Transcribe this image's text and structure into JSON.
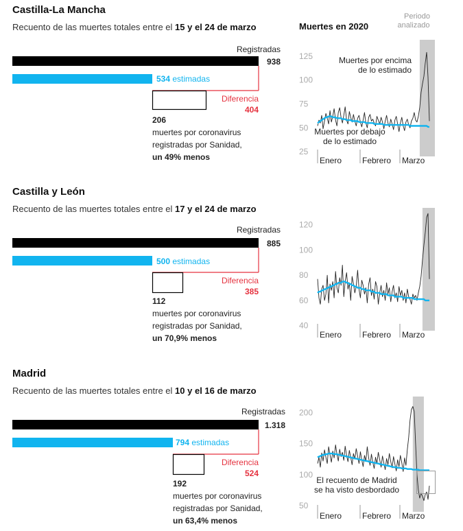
{
  "main_chart_title": "Muertes en 2020",
  "colors": {
    "black": "#000000",
    "blue": "#11b4ef",
    "red": "#e5323f",
    "gray": "#cccccc",
    "axis": "#999999"
  },
  "common_labels": {
    "registered": "Registradas",
    "estimated_suffix": "estimadas",
    "difference": "Diferencia",
    "covid_line1": "muertes por coronavirus",
    "covid_line2": "registradas por Sanidad,",
    "period_label_line1": "Periodo",
    "period_label_line2": "analizado",
    "subtitle_prefix": "Recuento de las muertes totales entre el",
    "months": [
      "Enero",
      "Febrero",
      "Marzo"
    ]
  },
  "regions": [
    {
      "name": "Castilla-La Mancha",
      "period": "15 y el 24 de marzo",
      "registered": "938",
      "estimated": "534",
      "difference": "404",
      "covid": "206",
      "percent_text": "un 49% menos",
      "annotation_above": [
        "Muertes por encima",
        "de lo estimado"
      ],
      "annotation_below": [
        "Muertes por debajo",
        "de lo estimado"
      ],
      "chart_data": {
        "type": "line",
        "title": "Muertes en 2020",
        "x_range": [
          "2020-01-01",
          "2020-03-24"
        ],
        "y_ticks": [
          25,
          50,
          75,
          100,
          125
        ],
        "ylim": [
          20,
          135
        ],
        "highlight_period": [
          "2020-03-15",
          "2020-03-24"
        ],
        "series": [
          {
            "kind": "registradas",
            "values": [
              52,
              58,
              55,
              63,
              49,
              57,
              65,
              60,
              54,
              68,
              56,
              62,
              70,
              58,
              52,
              66,
              71,
              61,
              55,
              63,
              72,
              58,
              54,
              67,
              61,
              56,
              64,
              57,
              52,
              60,
              63,
              56,
              51,
              58,
              66,
              55,
              50,
              61,
              64,
              57,
              59,
              55,
              52,
              62,
              58,
              54,
              61,
              56,
              49,
              57,
              63,
              55,
              51,
              59,
              54,
              48,
              58,
              62,
              54,
              46,
              55,
              61,
              52,
              47,
              56,
              59,
              53,
              50,
              57,
              60,
              66,
              58,
              56,
              62,
              71,
              87,
              96,
              104,
              118,
              129,
              103,
              57
            ]
          },
          {
            "kind": "estimadas",
            "values": [
              55,
              56,
              57,
              58,
              59,
              60,
              61,
              61,
              62,
              62,
              62,
              61,
              61,
              61,
              60,
              60,
              60,
              60,
              59,
              59,
              59,
              58,
              58,
              58,
              58,
              57,
              57,
              57,
              57,
              57,
              56,
              56,
              56,
              56,
              56,
              55,
              55,
              55,
              55,
              55,
              55,
              54,
              54,
              54,
              54,
              54,
              54,
              54,
              53,
              53,
              53,
              53,
              53,
              53,
              53,
              53,
              53,
              53,
              53,
              53,
              53,
              53,
              53,
              53,
              53,
              53,
              53,
              52,
              52,
              52,
              52,
              52,
              52,
              52,
              52,
              52,
              52,
              52,
              52,
              52,
              51,
              51
            ]
          }
        ]
      }
    },
    {
      "name": "Castilla y León",
      "period": "17 y el 24 de marzo",
      "registered": "885",
      "estimated": "500",
      "difference": "385",
      "covid": "112",
      "percent_text": "un 70,9% menos",
      "annotation_above": [],
      "annotation_below": [],
      "chart_data": {
        "type": "line",
        "title": "",
        "x_range": [
          "2020-01-01",
          "2020-03-24"
        ],
        "y_ticks": [
          40,
          60,
          80,
          100,
          120
        ],
        "ylim": [
          36,
          128
        ],
        "highlight_period": [
          "2020-03-17",
          "2020-03-24"
        ],
        "series": [
          {
            "kind": "registradas",
            "values": [
              77,
              62,
              57,
              69,
              72,
              60,
              65,
              80,
              58,
              73,
              68,
              75,
              62,
              83,
              70,
              66,
              78,
              72,
              88,
              63,
              75,
              82,
              69,
              74,
              60,
              79,
              73,
              66,
              71,
              84,
              69,
              62,
              76,
              72,
              65,
              70,
              58,
              73,
              78,
              64,
              69,
              61,
              75,
              71,
              57,
              66,
              72,
              63,
              68,
              60,
              74,
              65,
              70,
              59,
              67,
              72,
              62,
              66,
              59,
              71,
              64,
              68,
              60,
              66,
              58,
              69,
              63,
              61,
              57,
              65,
              62,
              64,
              60,
              66,
              71,
              79,
              92,
              104,
              114,
              126,
              129,
              77
            ]
          },
          {
            "kind": "estimadas",
            "values": [
              66,
              67,
              67,
              68,
              68,
              69,
              69,
              70,
              70,
              71,
              71,
              72,
              72,
              73,
              73,
              74,
              74,
              74,
              75,
              75,
              75,
              74,
              74,
              73,
              73,
              72,
              72,
              71,
              71,
              70,
              70,
              70,
              69,
              69,
              69,
              68,
              68,
              68,
              68,
              67,
              67,
              67,
              66,
              66,
              66,
              66,
              65,
              65,
              65,
              65,
              65,
              64,
              64,
              64,
              64,
              64,
              63,
              63,
              63,
              63,
              63,
              63,
              62,
              62,
              62,
              62,
              62,
              62,
              62,
              62,
              61,
              61,
              61,
              61,
              61,
              61,
              61,
              61,
              60,
              60,
              60,
              60
            ]
          }
        ]
      }
    },
    {
      "name": "Madrid",
      "period": "10 y el 16 de marzo",
      "registered": "1.318",
      "estimated": "794",
      "difference": "524",
      "covid": "192",
      "percent_text": "un 63,4% menos",
      "annotation_above": [],
      "annotation_below": [
        "El recuento de Madrid",
        "se ha visto desbordado"
      ],
      "chart_data": {
        "type": "line",
        "title": "",
        "x_range": [
          "2020-01-01",
          "2020-03-24"
        ],
        "y_ticks": [
          50,
          100,
          150,
          200
        ],
        "ylim": [
          40,
          215
        ],
        "highlight_period": [
          "2020-03-10",
          "2020-03-16"
        ],
        "series": [
          {
            "kind": "registradas",
            "values": [
              118,
              128,
              112,
              135,
              122,
              140,
              128,
              118,
              145,
              132,
              120,
              138,
              127,
              148,
              133,
              122,
              141,
              129,
              136,
              123,
              146,
              131,
              121,
              139,
              128,
              116,
              134,
              125,
              142,
              130,
              118,
              137,
              124,
              113,
              131,
              122,
              145,
              127,
              115,
              133,
              120,
              110,
              128,
              118,
              136,
              124,
              112,
              130,
              119,
              108,
              126,
              116,
              134,
              121,
              111,
              129,
              117,
              106,
              124,
              113,
              131,
              119,
              105,
              127,
              115,
              140,
              160,
              188,
              205,
              210,
              202,
              150,
              100,
              75,
              62,
              70,
              65,
              58,
              68,
              72,
              60,
              82
            ]
          },
          {
            "kind": "estimadas",
            "values": [
              128,
              129,
              130,
              131,
              132,
              132,
              133,
              133,
              134,
              134,
              134,
              134,
              133,
              133,
              133,
              132,
              132,
              131,
              131,
              130,
              130,
              129,
              129,
              128,
              128,
              127,
              127,
              126,
              126,
              125,
              125,
              124,
              124,
              123,
              123,
              122,
              122,
              121,
              121,
              120,
              120,
              119,
              119,
              118,
              118,
              117,
              117,
              116,
              116,
              115,
              115,
              114,
              114,
              113,
              113,
              112,
              112,
              112,
              111,
              111,
              111,
              110,
              110,
              110,
              110,
              109,
              109,
              109,
              109,
              108,
              108,
              108,
              108,
              108,
              107,
              107,
              107,
              107,
              107,
              107,
              107,
              107
            ]
          }
        ]
      }
    }
  ]
}
